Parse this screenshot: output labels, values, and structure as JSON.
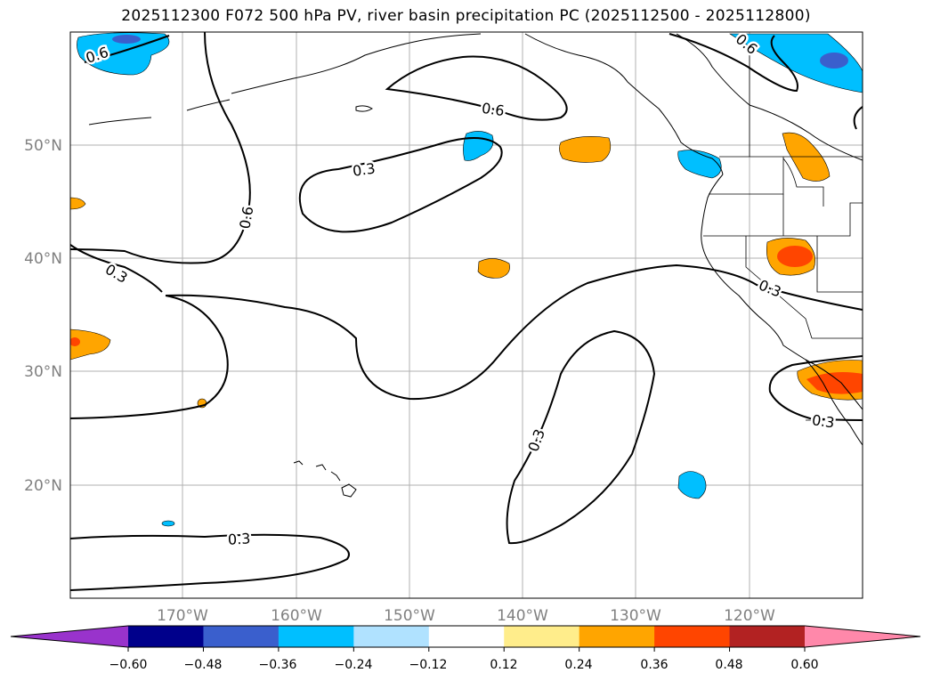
{
  "title": "2025112300 F072 500 hPa PV, river basin precipitation PC (2025112500 - 2025112800)",
  "lat_labels": [
    "50°N",
    "40°N",
    "30°N",
    "20°N"
  ],
  "lon_labels": [
    "170°W",
    "160°W",
    "150°W",
    "140°W",
    "130°W",
    "120°W"
  ],
  "contour_labels": [
    "0.6",
    "0.6",
    "0.6",
    "0.3",
    "0.6",
    "0.3",
    "0.3",
    "0.3",
    "0.3",
    "0.3"
  ],
  "colorbar": {
    "colors": [
      "#9933cc",
      "#00008b",
      "#3a5fcd",
      "#00bfff",
      "#b0e2ff",
      "#ffffff",
      "#ffed8b",
      "#ffa500",
      "#ff4500",
      "#b22222",
      "#ff88aa"
    ],
    "tick_labels": [
      "−0.60",
      "−0.48",
      "−0.36",
      "−0.24",
      "−0.12",
      "0.12",
      "0.24",
      "0.36",
      "0.48",
      "0.60"
    ]
  },
  "colors": {
    "grid": "#b0b0b0",
    "axis_label": "#808080",
    "contour": "#000000"
  }
}
